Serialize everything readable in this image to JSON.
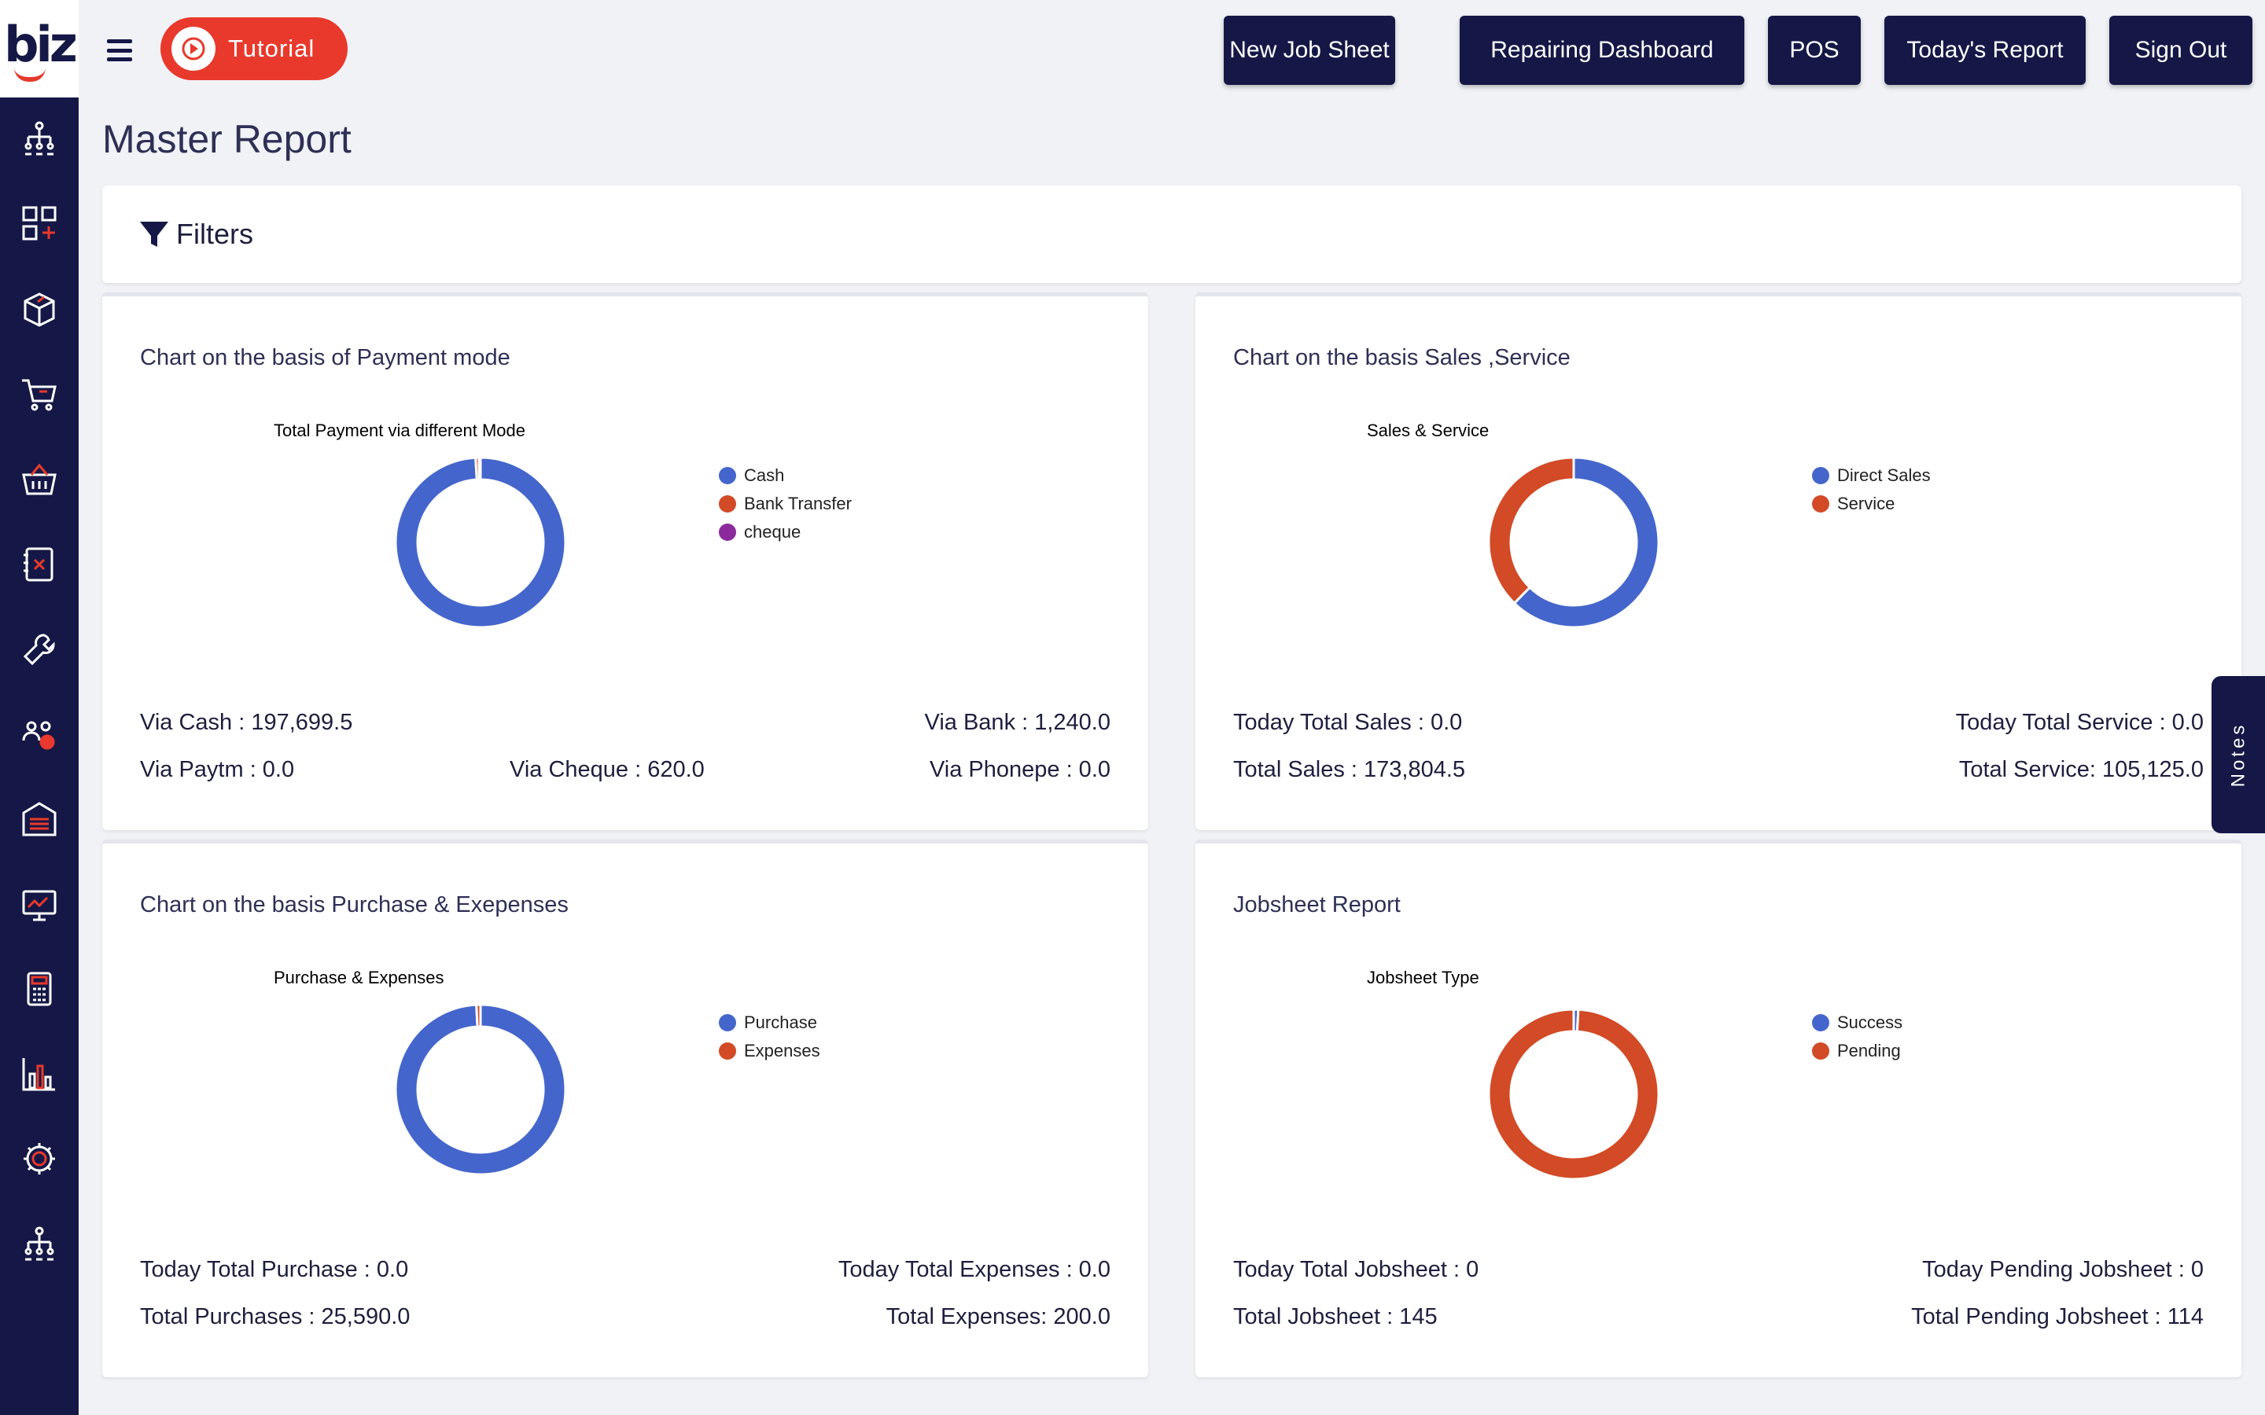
{
  "app": {
    "logo_text": "biz"
  },
  "topbar": {
    "tutorial_label": "Tutorial",
    "buttons": [
      "New Job Sheet",
      "Repairing Dashboard",
      "POS",
      "Today's Report",
      "Sign Out"
    ]
  },
  "sidebar": {
    "icons": [
      "org-chart-icon",
      "dashboard-add-icon",
      "box-icon",
      "cart-icon",
      "basket-icon",
      "ledger-icon",
      "wrench-icon",
      "users-icon",
      "warehouse-icon",
      "monitor-icon",
      "calculator-icon",
      "bar-chart-icon",
      "settings-icon",
      "hierarchy-icon"
    ]
  },
  "page": {
    "title": "Master Report",
    "filters_label": "Filters"
  },
  "notes_label": "Notes",
  "colors": {
    "blue": "#4466cc",
    "red": "#d24a26",
    "purple": "#8b2a9c",
    "navy": "#151846",
    "accent": "#e8392c"
  },
  "cards": [
    {
      "title": "Chart on the basis of Payment mode",
      "stats": [
        {
          "label": "Via Cash : 197,699.5"
        },
        {
          "label": "Via Bank : 1,240.0"
        },
        {
          "label": "Via Paytm : 0.0"
        },
        {
          "label": "Via Cheque : 620.0"
        },
        {
          "label": "Via Phonepe : 0.0"
        }
      ]
    },
    {
      "title": "Chart on the basis Sales ,Service",
      "stats": [
        {
          "label": "Today Total Sales : 0.0"
        },
        {
          "label": "Today Total Service : 0.0"
        },
        {
          "label": "Total Sales : 173,804.5"
        },
        {
          "label": "Total Service: 105,125.0"
        }
      ]
    },
    {
      "title": "Chart on the basis Purchase & Exepenses",
      "stats": [
        {
          "label": "Today Total Purchase : 0.0"
        },
        {
          "label": "Today Total Expenses : 0.0"
        },
        {
          "label": "Total Purchases : 25,590.0"
        },
        {
          "label": "Total Expenses: 200.0"
        }
      ]
    },
    {
      "title": "Jobsheet Report",
      "stats": [
        {
          "label": "Today Total Jobsheet : 0"
        },
        {
          "label": "Today Pending Jobsheet : 0"
        },
        {
          "label": "Total Jobsheet : 145"
        },
        {
          "label": "Total Pending Jobsheet : 114"
        }
      ]
    }
  ],
  "chart_data": [
    {
      "type": "pie",
      "title": "Total Payment via different Mode",
      "categories": [
        "Cash",
        "Bank Transfer",
        "cheque"
      ],
      "values": [
        197699.5,
        1240.0,
        620.0
      ],
      "colors": [
        "#4466cc",
        "#d24a26",
        "#8b2a9c"
      ],
      "legend": "right"
    },
    {
      "type": "pie",
      "title": "Sales & Service",
      "categories": [
        "Direct Sales",
        "Service"
      ],
      "values": [
        173804.5,
        105125.0
      ],
      "colors": [
        "#4466cc",
        "#d24a26"
      ],
      "legend": "right"
    },
    {
      "type": "pie",
      "title": "Purchase & Expenses",
      "categories": [
        "Purchase",
        "Expenses"
      ],
      "values": [
        25590.0,
        200.0
      ],
      "colors": [
        "#4466cc",
        "#d24a26"
      ],
      "legend": "right"
    },
    {
      "type": "pie",
      "title": "Jobsheet Type",
      "categories": [
        "Success",
        "Pending"
      ],
      "values": [
        1,
        114
      ],
      "colors": [
        "#4466cc",
        "#d24a26"
      ],
      "legend": "right"
    }
  ]
}
